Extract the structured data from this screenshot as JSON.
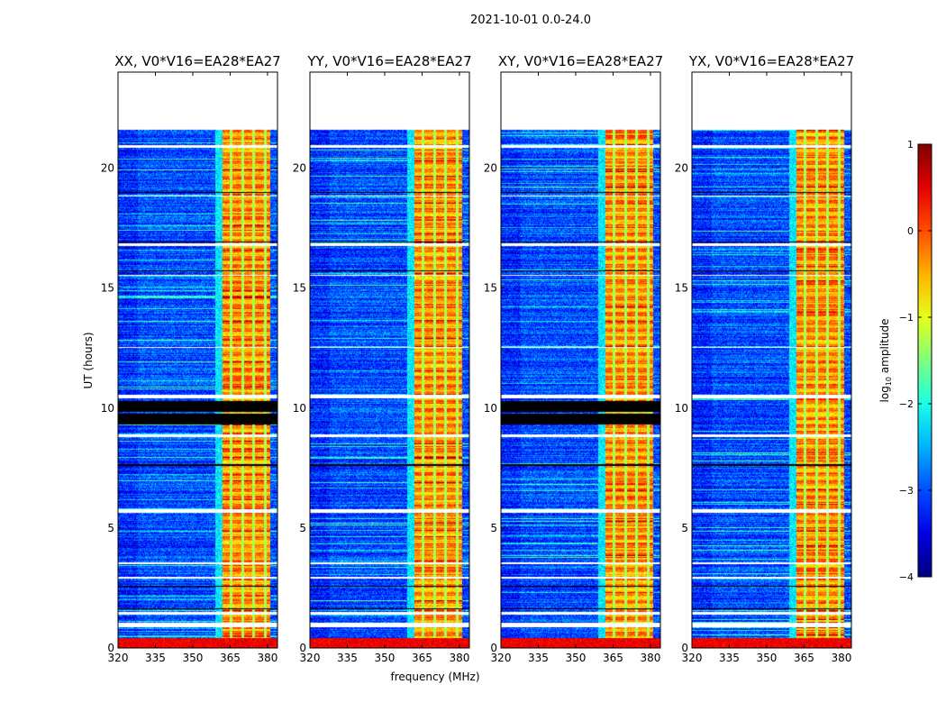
{
  "suptitle": "2021-10-01 0.0-24.0",
  "chart_data": {
    "type": "heatmap",
    "xlabel": "frequency (MHz)",
    "ylabel": "UT (hours)",
    "xlim": [
      320,
      384
    ],
    "ylim": [
      0,
      24
    ],
    "xticks": [
      320,
      335,
      350,
      365,
      380
    ],
    "yticks": [
      0,
      5,
      10,
      15,
      20
    ],
    "data_time_range": [
      0,
      21.6
    ],
    "colormap": "jet",
    "colorbar": {
      "label": "log10 amplitude",
      "label_main": "log",
      "label_sub": "10",
      "label_rest": " amplitude",
      "range": [
        -4,
        1
      ],
      "ticks": [
        1,
        0,
        -1,
        -2,
        -3,
        -4
      ]
    },
    "features": {
      "background_level": -3.0,
      "rfi_band_mhz": [
        362,
        381
      ],
      "rfi_level": -0.4,
      "rfi_channel_gaps_mhz": [
        365.5,
        370,
        374.5,
        379
      ],
      "low_time_rfi_hours": [
        0,
        0.4
      ],
      "flagged_white_hours": [
        [
          20.85,
          20.95
        ],
        [
          18.8,
          18.85
        ],
        [
          16.75,
          16.85
        ],
        [
          15.5,
          15.55
        ],
        [
          12.5,
          12.55
        ],
        [
          10.4,
          10.55
        ],
        [
          8.8,
          8.9
        ],
        [
          5.65,
          5.8
        ],
        [
          3.5,
          3.55
        ],
        [
          2.9,
          2.95
        ],
        [
          1.4,
          1.5
        ],
        [
          0.85,
          1.05
        ]
      ],
      "flagged_black_hours": [
        [
          18.95,
          19.0
        ],
        [
          16.9,
          16.95
        ],
        [
          15.7,
          15.75
        ],
        [
          7.6,
          7.65
        ],
        [
          2.55,
          2.6
        ],
        [
          1.6,
          1.65
        ]
      ]
    },
    "panels": [
      {
        "title": "XX, V0*V16=EA28*EA27",
        "black_block_hours": [
          9.3,
          10.3
        ]
      },
      {
        "title": "YY, V0*V16=EA28*EA27",
        "black_block_hours": null
      },
      {
        "title": "XY, V0*V16=EA28*EA27",
        "black_block_hours": [
          9.3,
          10.3
        ]
      },
      {
        "title": "YX, V0*V16=EA28*EA27",
        "black_block_hours": null
      }
    ]
  }
}
